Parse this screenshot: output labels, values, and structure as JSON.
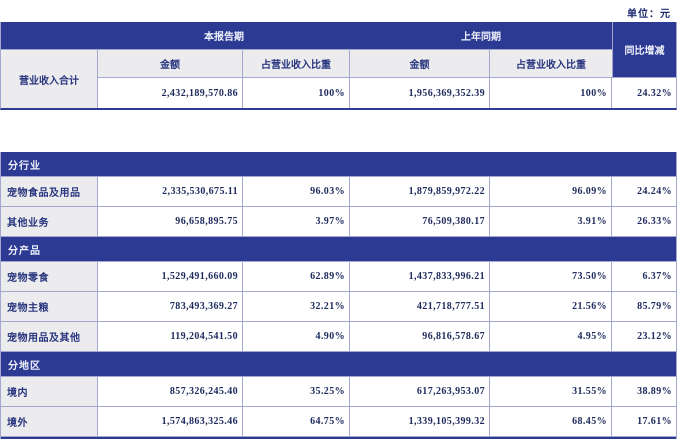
{
  "meta": {
    "unit_label": "单位：元"
  },
  "colors": {
    "band_blue": "#2d3a93",
    "grid_line": "#a2a8cf",
    "label_cell_gray": "#ececee",
    "number_text": "#1d2a5c",
    "label_text": "#29357e",
    "band_text": "#eef1fa"
  },
  "summary_table": {
    "group_headers": [
      "本报告期",
      "上年同期"
    ],
    "sub_headers": [
      "金额",
      "占营业收入比重",
      "金额",
      "占营业收入比重"
    ],
    "yoy_header": "同比增减",
    "row_label": "营业收入合计",
    "values": [
      "2,432,189,570.86",
      "100%",
      "1,956,369,352.39",
      "100%",
      "24.32%"
    ]
  },
  "detail_table": {
    "sections": [
      {
        "title": "分行业",
        "rows": [
          {
            "label": "宠物食品及用品",
            "values": [
              "2,335,530,675.11",
              "96.03%",
              "1,879,859,972.22",
              "96.09%",
              "24.24%"
            ]
          },
          {
            "label": "其他业务",
            "values": [
              "96,658,895.75",
              "3.97%",
              "76,509,380.17",
              "3.91%",
              "26.33%"
            ]
          }
        ]
      },
      {
        "title": "分产品",
        "rows": [
          {
            "label": "宠物零食",
            "values": [
              "1,529,491,660.09",
              "62.89%",
              "1,437,833,996.21",
              "73.50%",
              "6.37%"
            ]
          },
          {
            "label": "宠物主粮",
            "values": [
              "783,493,369.27",
              "32.21%",
              "421,718,777.51",
              "21.56%",
              "85.79%"
            ]
          },
          {
            "label": "宠物用品及其他",
            "values": [
              "119,204,541.50",
              "4.90%",
              "96,816,578.67",
              "4.95%",
              "23.12%"
            ]
          }
        ]
      },
      {
        "title": "分地区",
        "rows": [
          {
            "label": "境内",
            "values": [
              "857,326,245.40",
              "35.25%",
              "617,263,953.07",
              "31.55%",
              "38.89%"
            ]
          },
          {
            "label": "境外",
            "values": [
              "1,574,863,325.46",
              "64.75%",
              "1,339,105,399.32",
              "68.45%",
              "17.61%"
            ]
          }
        ]
      }
    ]
  }
}
